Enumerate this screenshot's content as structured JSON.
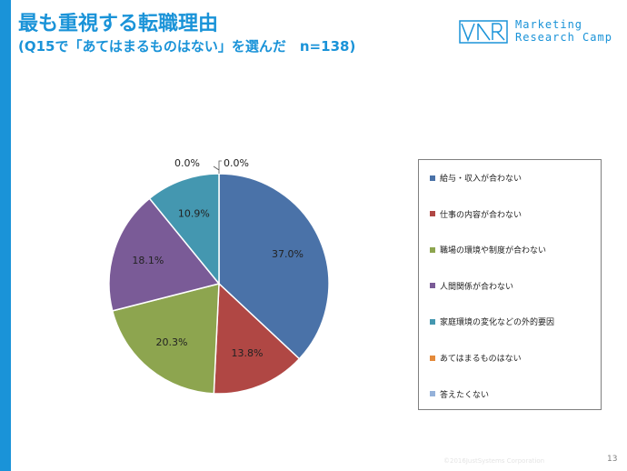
{
  "header": {
    "title": "最も重視する転職理由",
    "subtitle": "(Q15で「あてはまるものはない」を選んだ　n=138)"
  },
  "logo": {
    "mark": "MRC",
    "line1": "Marketing",
    "line2": "Research Camp"
  },
  "chart_data": {
    "type": "pie",
    "categories": [
      "給与・収入が合わない",
      "仕事の内容が合わない",
      "職場の環境や制度が合わない",
      "人間関係が合わない",
      "家庭環境の変化などの外的要因",
      "あてはまるものはない",
      "答えたくない"
    ],
    "values": [
      37.0,
      13.8,
      20.3,
      18.1,
      10.9,
      0.0,
      0.0
    ],
    "data_labels": [
      "37.0%",
      "13.8%",
      "20.3%",
      "18.1%",
      "10.9%",
      "0.0%",
      "0.0%"
    ],
    "colors": [
      "#4a72a8",
      "#b04744",
      "#8da54f",
      "#7a5b97",
      "#4497b0",
      "#e48a3a",
      "#94b1d9"
    ],
    "legend_position": "right"
  },
  "footer": {
    "copyright": "©2016JustSystems Corporation",
    "page_number": "13"
  }
}
